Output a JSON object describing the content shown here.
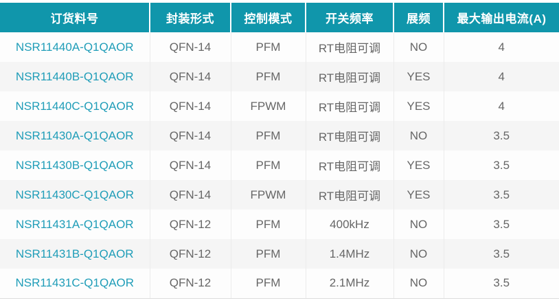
{
  "table": {
    "columns": [
      {
        "key": "part",
        "label": "订货料号"
      },
      {
        "key": "package",
        "label": "封装形式"
      },
      {
        "key": "control",
        "label": "控制模式"
      },
      {
        "key": "freq",
        "label": "开关频率"
      },
      {
        "key": "spread",
        "label": "展频"
      },
      {
        "key": "current",
        "label": "最大输出电流(A)"
      }
    ],
    "rows": [
      [
        "NSR11440A-Q1QAOR",
        "QFN-14",
        "PFM",
        "RT电阻可调",
        "NO",
        "4"
      ],
      [
        "NSR11440B-Q1QAOR",
        "QFN-14",
        "PFM",
        "RT电阻可调",
        "YES",
        "4"
      ],
      [
        "NSR11440C-Q1QAOR",
        "QFN-14",
        "FPWM",
        "RT电阻可调",
        "YES",
        "4"
      ],
      [
        "NSR11430A-Q1QAOR",
        "QFN-14",
        "PFM",
        "RT电阻可调",
        "NO",
        "3.5"
      ],
      [
        "NSR11430B-Q1QAOR",
        "QFN-14",
        "PFM",
        "RT电阻可调",
        "YES",
        "3.5"
      ],
      [
        "NSR11430C-Q1QAOR",
        "QFN-14",
        "FPWM",
        "RT电阻可调",
        "YES",
        "3.5"
      ],
      [
        "NSR11431A-Q1QAOR",
        "QFN-12",
        "PFM",
        "400kHz",
        "NO",
        "3.5"
      ],
      [
        "NSR11431B-Q1QAOR",
        "QFN-12",
        "PFM",
        "1.4MHz",
        "NO",
        "3.5"
      ],
      [
        "NSR11431C-Q1QAOR",
        "QFN-12",
        "PFM",
        "2.1MHz",
        "NO",
        "3.5"
      ]
    ]
  },
  "colors": {
    "header_bg": "#1096ab",
    "link_text": "#1f9db8",
    "body_text": "#666666",
    "stripe": "#f5f5f5",
    "separator": "#ebebeb"
  }
}
